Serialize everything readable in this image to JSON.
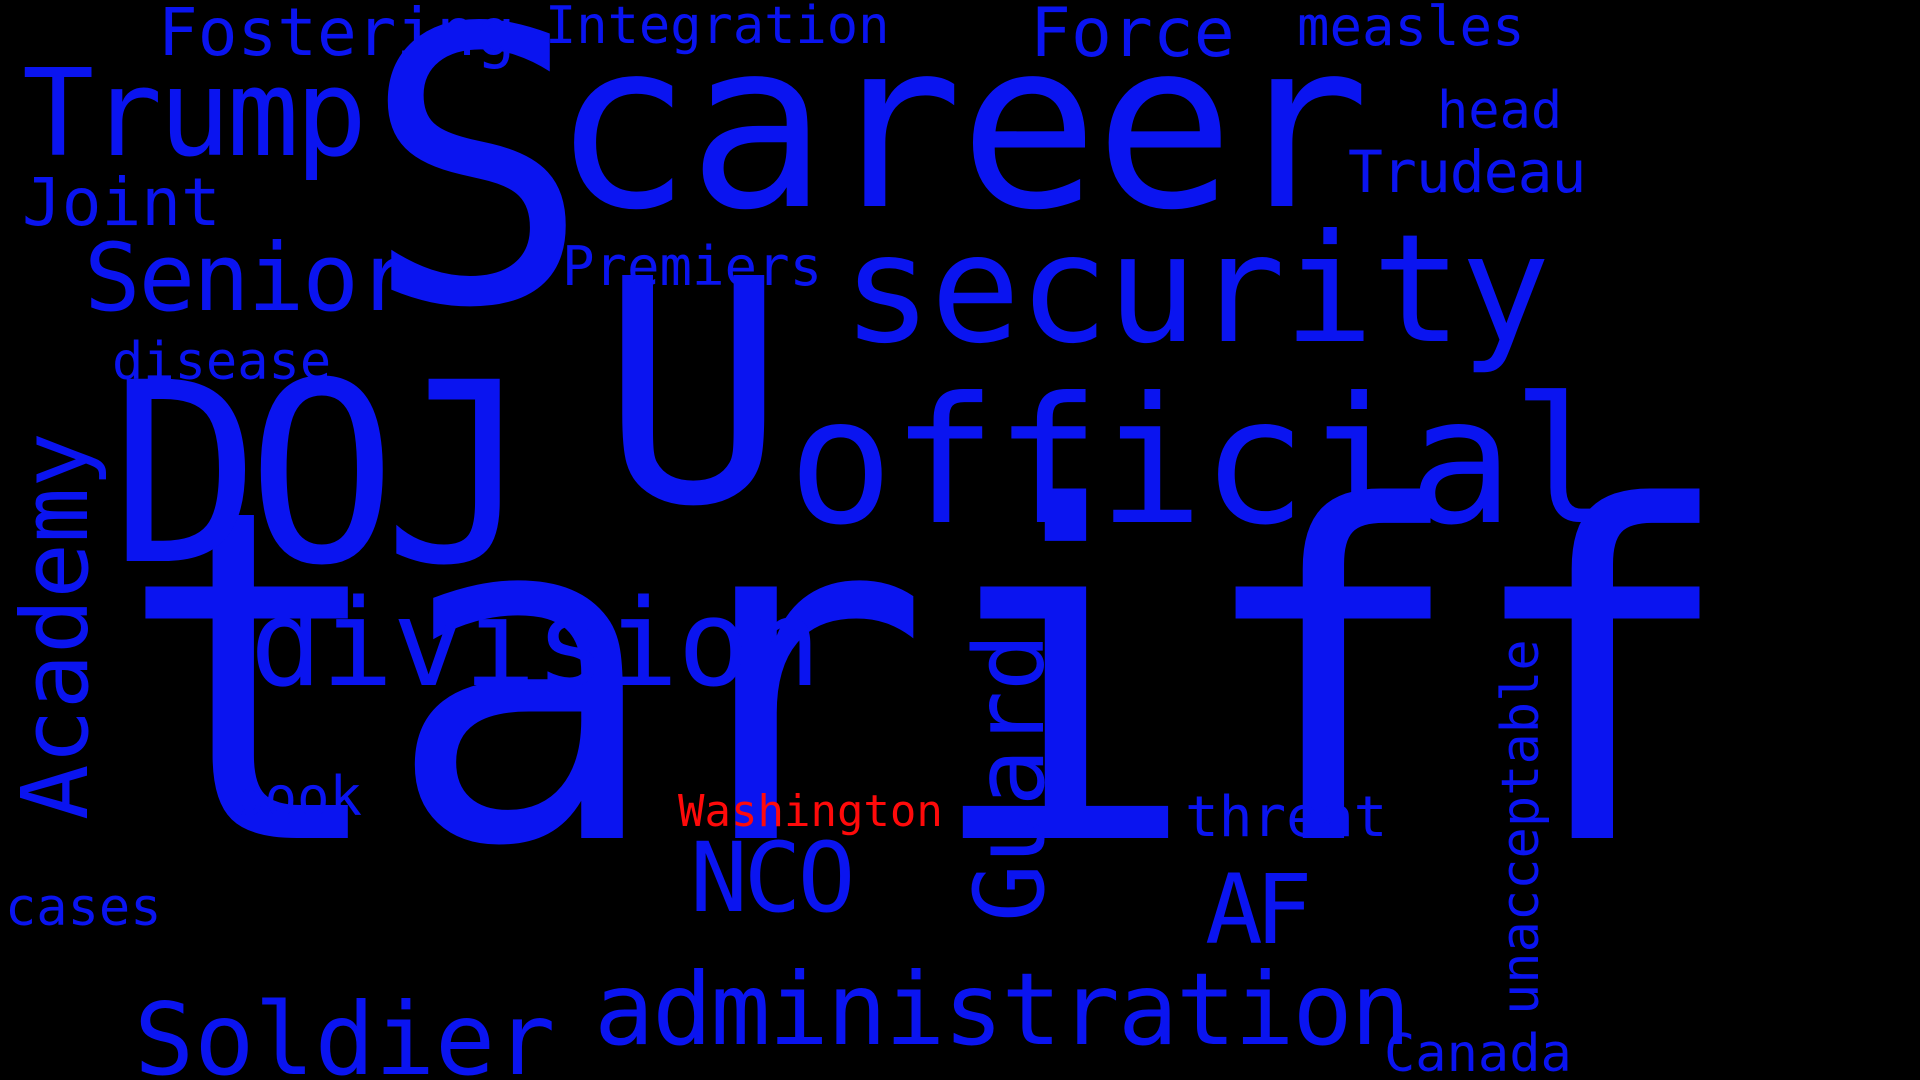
{
  "colors": {
    "background": "#000000",
    "primary_word": "#0a14f0",
    "highlight_word": "#ff0a0a"
  },
  "words": {
    "tariff": "tariff",
    "s": "S",
    "career": "career",
    "u": "U",
    "doj": "DOJ",
    "official": "official",
    "security": "security",
    "division": "division",
    "administration": "administration",
    "soldier": "Soldier",
    "trump": "Trump",
    "senior": "Senior",
    "academy": "Academy",
    "guard": "Guard",
    "nco": "NCO",
    "af": "AF",
    "fostering": "Fostering",
    "integration": "Integration",
    "force": "Force",
    "measles": "measles",
    "head": "head",
    "trudeau": "Trudeau",
    "joint": "Joint",
    "premiers": "Premiers",
    "disease": "disease",
    "book": "book",
    "washington": "Washington",
    "threat": "threat",
    "unacceptable": "unacceptable",
    "cases": "cases",
    "canada": "Canada"
  }
}
